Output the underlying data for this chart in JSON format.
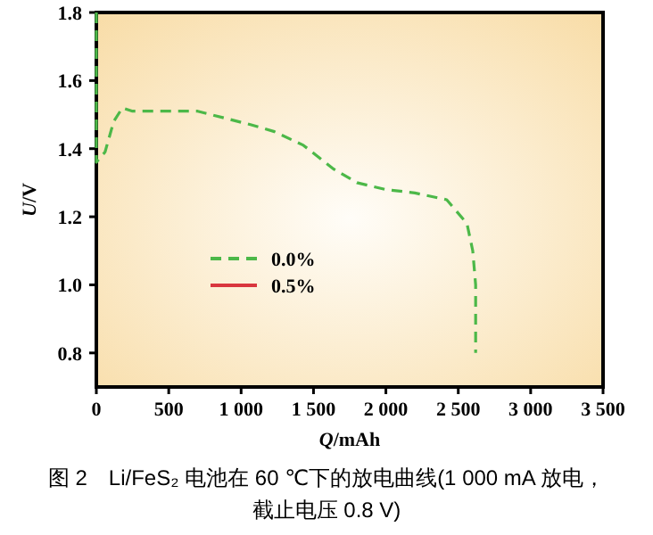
{
  "chart_data": {
    "type": "line",
    "xlabel": "Q/mAh",
    "ylabel": "U/V",
    "annotations": [
      "图 2　Li/FeS₂ 电池在 60 ℃下的放电曲线(1 000 mA 放电，",
      "截止电压 0.8 V)"
    ],
    "x": [
      0,
      0,
      0,
      60,
      120,
      180,
      250,
      700,
      1070,
      1230,
      1430,
      1640,
      1800,
      2000,
      2200,
      2420,
      2560,
      2600,
      2620,
      2620
    ],
    "series": [
      {
        "name": "0.0%",
        "color": "#4cb848",
        "line_style": "dashed",
        "values": [
          1.8,
          1.5,
          1.36,
          1.39,
          1.48,
          1.52,
          1.51,
          1.51,
          1.47,
          1.45,
          1.41,
          1.34,
          1.3,
          1.28,
          1.27,
          1.25,
          1.18,
          1.1,
          1.0,
          0.8
        ]
      },
      {
        "name": "0.5%",
        "color": "#d9363e",
        "line_style": "solid",
        "values": [
          null,
          null,
          null,
          null,
          null,
          null,
          null,
          null,
          null,
          null,
          null,
          null,
          null,
          null,
          null,
          null,
          null,
          null,
          null,
          null
        ]
      }
    ],
    "xlim": [
      0,
      3500
    ],
    "ylim": [
      0.7,
      1.8
    ],
    "xticks": [
      0,
      500,
      {
        "value": 1000,
        "label": "1 000"
      },
      {
        "value": 1500,
        "label": "1 500"
      },
      {
        "value": 2000,
        "label": "2 000"
      },
      {
        "value": 2500,
        "label": "2 500"
      },
      {
        "value": 3000,
        "label": "3 000"
      },
      {
        "value": 3500,
        "label": "3 500"
      }
    ],
    "yticks": [
      {
        "value": 0.8,
        "label": "0.8"
      },
      {
        "value": 1.0,
        "label": "1.0"
      },
      {
        "value": 1.2,
        "label": "1.2"
      },
      {
        "value": 1.4,
        "label": "1.4"
      },
      {
        "value": 1.6,
        "label": "1.6"
      },
      {
        "value": 1.8,
        "label": "1.8"
      }
    ],
    "grid": false,
    "legend": "left"
  }
}
